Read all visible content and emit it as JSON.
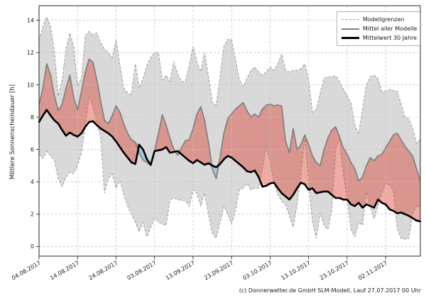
{
  "figure": {
    "ylabel": "Mittlere Sonnenscheindauer [h]",
    "caption": "(c) Donnerwetter.de GmbH SLM-Modell, Lauf 27.07.2017 00 Uhr",
    "legend": {
      "items": [
        {
          "label": "Modellgrenzen",
          "style": "dashed-gray"
        },
        {
          "label": "Mittel aller Modelle",
          "style": "solid-gray"
        },
        {
          "label": "Mittelwert 30 Jahre",
          "style": "solid-black-thick"
        }
      ]
    }
  },
  "chart_data": {
    "type": "line",
    "title": "",
    "ylabel": "Mittlere Sonnenscheindauer [h]",
    "grid": true,
    "legend_position": "upper right",
    "x_start_date": "04.08.2017",
    "x_range_days": 99,
    "x_tick_days": [
      0,
      10,
      20,
      30,
      40,
      50,
      60,
      70,
      80,
      90
    ],
    "x_tick_labels": [
      "04.08.2017",
      "14.08.2017",
      "24.08.2017",
      "03.09.2017",
      "13.09.2017",
      "23.09.2017",
      "03.10.2017",
      "13.10.2017",
      "23.10.2017",
      "02.11.2017"
    ],
    "y_ticks": [
      0,
      2,
      4,
      6,
      8,
      10,
      12,
      14
    ],
    "y_tick_labels": [
      "0",
      "2",
      "4",
      "6",
      "8",
      "10",
      "12",
      "14"
    ],
    "ylim": [
      -0.6,
      14.9
    ],
    "colors": {
      "band": "#d9d9d9",
      "band_edge": "#999999",
      "above_fill": "rgba(218,68,50,0.45)",
      "below_fill": "rgba(125,190,220,0.55)",
      "model_mean_line": "#7f7f7f",
      "climate_mean_line": "#000000",
      "grid": "#c4c4c4",
      "axis": "#262626"
    },
    "series": [
      {
        "name": "Modellgrenzen (oben)",
        "role": "upper",
        "values": [
          12.75,
          13.6,
          14.2,
          13.6,
          12.0,
          9.3,
          10.3,
          12.2,
          13.2,
          12.4,
          10.0,
          10.4,
          13.05,
          13.3,
          13.1,
          13.2,
          12.6,
          12.2,
          12.0,
          11.7,
          12.8,
          11.2,
          9.8,
          9.5,
          9.4,
          11.3,
          9.8,
          10.4,
          11.2,
          11.7,
          12.0,
          12.0,
          10.3,
          10.6,
          10.2,
          11.4,
          10.7,
          10.2,
          10.2,
          11.2,
          12.4,
          11.4,
          10.8,
          12.0,
          10.5,
          8.9,
          8.75,
          10.5,
          12.4,
          12.8,
          12.8,
          11.6,
          10.3,
          9.9,
          10.4,
          10.9,
          11.1,
          10.8,
          10.6,
          10.8,
          11.1,
          10.9,
          11.3,
          11.9,
          10.9,
          10.8,
          10.9,
          10.9,
          11.0,
          11.3,
          10.3,
          8.3,
          8.5,
          9.5,
          10.4,
          10.5,
          10.5,
          10.55,
          10.2,
          9.75,
          9.3,
          8.9,
          7.5,
          7.0,
          8.5,
          10.0,
          10.5,
          10.6,
          10.4,
          9.6,
          9.6,
          9.7,
          9.65,
          9.6,
          8.8,
          8.0,
          7.9,
          7.3,
          6.4,
          6.6
        ]
      },
      {
        "name": "Modellgrenzen (unten)",
        "role": "lower",
        "values": [
          5.7,
          5.45,
          5.9,
          5.6,
          5.3,
          4.2,
          3.7,
          4.3,
          4.6,
          4.5,
          5.0,
          5.8,
          7.5,
          9.3,
          8.65,
          7.65,
          6.8,
          3.3,
          4.2,
          4.5,
          3.6,
          4.1,
          3.2,
          2.5,
          2.0,
          1.5,
          0.9,
          1.5,
          0.6,
          1.2,
          1.75,
          1.5,
          1.4,
          1.3,
          2.85,
          3.0,
          2.9,
          2.85,
          2.85,
          2.5,
          3.5,
          3.3,
          2.5,
          3.3,
          2.0,
          0.8,
          0.5,
          1.5,
          2.5,
          2.0,
          1.4,
          2.2,
          3.5,
          3.6,
          3.9,
          3.5,
          3.6,
          3.6,
          4.8,
          6.2,
          5.2,
          3.9,
          3.2,
          2.8,
          2.6,
          1.9,
          1.2,
          2.6,
          4.5,
          6.8,
          4.0,
          1.5,
          0.5,
          2.1,
          1.3,
          1.05,
          2.2,
          6.0,
          6.7,
          4.5,
          2.95,
          1.05,
          0.6,
          1.5,
          1.3,
          3.4,
          2.5,
          1.7,
          2.5,
          3.3,
          3.9,
          3.8,
          3.5,
          1.1,
          0.5,
          0.45,
          0.5,
          2.0,
          2.5,
          2.4
        ]
      },
      {
        "name": "Mittel aller Modelle",
        "role": "model_mean",
        "values": [
          8.75,
          9.8,
          11.3,
          10.6,
          9.3,
          8.4,
          8.8,
          9.8,
          10.6,
          9.2,
          8.45,
          9.6,
          10.8,
          11.6,
          11.4,
          10.3,
          9.0,
          7.8,
          7.6,
          8.1,
          8.7,
          8.3,
          7.6,
          7.0,
          6.6,
          6.45,
          5.8,
          5.35,
          5.2,
          5.0,
          5.95,
          7.0,
          8.15,
          7.5,
          6.7,
          6.0,
          5.65,
          6.1,
          6.55,
          6.6,
          7.3,
          8.2,
          8.65,
          7.8,
          6.4,
          4.8,
          4.2,
          5.5,
          7.0,
          7.9,
          8.2,
          8.5,
          8.7,
          8.9,
          8.4,
          8.0,
          8.2,
          8.0,
          8.5,
          8.75,
          8.8,
          8.7,
          8.75,
          8.7,
          6.5,
          5.8,
          7.3,
          6.0,
          6.3,
          6.9,
          6.3,
          5.6,
          5.2,
          5.0,
          6.0,
          6.7,
          7.2,
          7.4,
          6.8,
          6.1,
          5.7,
          5.2,
          4.8,
          4.05,
          4.3,
          5.0,
          5.5,
          5.3,
          5.6,
          5.7,
          6.1,
          6.5,
          6.9,
          7.0,
          6.6,
          6.2,
          5.9,
          5.6,
          4.8,
          4.05
        ]
      },
      {
        "name": "Mittelwert 30 Jahre",
        "role": "climate_mean",
        "values": [
          7.7,
          8.1,
          8.45,
          8.1,
          7.8,
          7.6,
          7.2,
          6.85,
          7.05,
          6.9,
          6.8,
          7.0,
          7.4,
          7.7,
          7.75,
          7.5,
          7.3,
          7.15,
          7.0,
          6.8,
          6.5,
          6.15,
          5.8,
          5.5,
          5.2,
          5.1,
          6.3,
          6.0,
          5.4,
          5.05,
          5.9,
          5.95,
          6.0,
          6.15,
          5.8,
          5.85,
          5.9,
          5.7,
          5.5,
          5.3,
          5.15,
          5.35,
          5.2,
          5.05,
          5.15,
          5.0,
          4.9,
          5.1,
          5.4,
          5.6,
          5.5,
          5.3,
          5.1,
          4.9,
          4.65,
          4.6,
          4.7,
          4.3,
          3.7,
          3.75,
          3.9,
          3.95,
          3.6,
          3.3,
          3.1,
          2.9,
          3.2,
          3.6,
          3.95,
          3.85,
          3.5,
          3.6,
          3.3,
          3.35,
          3.4,
          3.4,
          3.2,
          3.0,
          3.0,
          2.9,
          2.9,
          2.6,
          2.5,
          2.7,
          2.4,
          2.6,
          2.5,
          2.4,
          2.9,
          2.7,
          2.6,
          2.3,
          2.2,
          2.05,
          2.1,
          2.0,
          1.9,
          1.75,
          1.6,
          1.55
        ]
      }
    ]
  }
}
